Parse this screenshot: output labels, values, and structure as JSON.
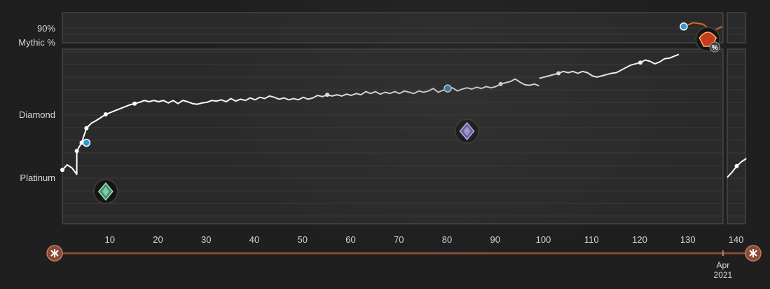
{
  "chart_data": {
    "type": "line",
    "title": "",
    "xlabel": "",
    "ylabel": "",
    "x_ticks": [
      10,
      20,
      30,
      40,
      50,
      60,
      70,
      80,
      90,
      100,
      110,
      120,
      130,
      140
    ],
    "xlim": [
      0,
      142
    ],
    "rank_labels": [
      "Platinum",
      "Diamond",
      "Mythic %"
    ],
    "mythic_tick_label": "90%",
    "date_marker": {
      "x": 137,
      "label_line1": "Apr",
      "label_line2": "2021"
    },
    "series": [
      {
        "y_scale": "rank",
        "segments": [
          [
            [
              0,
              4.12
            ],
            [
              1,
              4.2
            ],
            [
              2,
              4.15
            ],
            [
              3,
              4.05
            ],
            [
              3,
              4.42
            ],
            [
              4,
              4.55
            ],
            [
              5,
              4.78
            ],
            [
              6,
              4.86
            ],
            [
              7,
              4.9
            ],
            [
              8,
              4.95
            ],
            [
              9,
              5.0
            ],
            [
              10,
              5.03
            ],
            [
              11,
              5.06
            ],
            [
              12,
              5.09
            ],
            [
              13,
              5.12
            ],
            [
              14,
              5.15
            ],
            [
              15,
              5.17
            ],
            [
              16,
              5.19
            ],
            [
              17,
              5.22
            ],
            [
              18,
              5.2
            ],
            [
              19,
              5.22
            ],
            [
              20,
              5.2
            ],
            [
              21,
              5.22
            ],
            [
              22,
              5.18
            ],
            [
              23,
              5.22
            ],
            [
              24,
              5.17
            ],
            [
              25,
              5.22
            ],
            [
              26,
              5.2
            ],
            [
              27,
              5.17
            ],
            [
              28,
              5.16
            ],
            [
              29,
              5.18
            ],
            [
              30,
              5.19
            ],
            [
              31,
              5.22
            ],
            [
              32,
              5.21
            ],
            [
              33,
              5.23
            ],
            [
              34,
              5.2
            ],
            [
              35,
              5.25
            ],
            [
              36,
              5.21
            ],
            [
              37,
              5.24
            ],
            [
              38,
              5.22
            ],
            [
              39,
              5.26
            ],
            [
              40,
              5.23
            ],
            [
              41,
              5.27
            ],
            [
              42,
              5.25
            ],
            [
              43,
              5.29
            ],
            [
              44,
              5.27
            ],
            [
              45,
              5.24
            ],
            [
              46,
              5.26
            ],
            [
              47,
              5.23
            ],
            [
              48,
              5.25
            ],
            [
              49,
              5.23
            ],
            [
              50,
              5.27
            ],
            [
              51,
              5.24
            ],
            [
              52,
              5.26
            ],
            [
              53,
              5.3
            ],
            [
              54,
              5.28
            ],
            [
              55,
              5.31
            ],
            [
              56,
              5.29
            ],
            [
              57,
              5.31
            ],
            [
              58,
              5.29
            ],
            [
              59,
              5.32
            ],
            [
              60,
              5.3
            ],
            [
              61,
              5.33
            ],
            [
              62,
              5.31
            ],
            [
              63,
              5.36
            ],
            [
              64,
              5.33
            ],
            [
              65,
              5.36
            ],
            [
              66,
              5.32
            ],
            [
              67,
              5.35
            ],
            [
              68,
              5.33
            ],
            [
              69,
              5.36
            ],
            [
              70,
              5.33
            ],
            [
              71,
              5.37
            ],
            [
              72,
              5.35
            ],
            [
              73,
              5.33
            ],
            [
              74,
              5.37
            ],
            [
              75,
              5.35
            ],
            [
              76,
              5.37
            ],
            [
              77,
              5.41
            ],
            [
              78,
              5.35
            ],
            [
              79,
              5.38
            ],
            [
              80,
              5.41
            ],
            [
              81,
              5.42
            ],
            [
              82,
              5.37
            ],
            [
              83,
              5.4
            ],
            [
              84,
              5.42
            ],
            [
              85,
              5.4
            ],
            [
              86,
              5.43
            ],
            [
              87,
              5.41
            ],
            [
              88,
              5.44
            ],
            [
              89,
              5.42
            ],
            [
              90,
              5.44
            ],
            [
              91,
              5.48
            ],
            [
              92,
              5.5
            ],
            [
              93,
              5.52
            ],
            [
              94,
              5.56
            ],
            [
              95,
              5.51
            ],
            [
              96,
              5.47
            ],
            [
              97,
              5.46
            ],
            [
              98,
              5.48
            ],
            [
              99,
              5.45
            ]
          ],
          [
            [
              99,
              5.57
            ],
            [
              100,
              5.59
            ],
            [
              101,
              5.61
            ],
            [
              102,
              5.63
            ],
            [
              103,
              5.65
            ],
            [
              104,
              5.68
            ],
            [
              105,
              5.66
            ],
            [
              106,
              5.68
            ],
            [
              107,
              5.65
            ],
            [
              108,
              5.68
            ],
            [
              109,
              5.66
            ],
            [
              110,
              5.61
            ],
            [
              111,
              5.59
            ],
            [
              112,
              5.61
            ],
            [
              113,
              5.63
            ],
            [
              114,
              5.65
            ],
            [
              115,
              5.66
            ],
            [
              116,
              5.7
            ],
            [
              117,
              5.74
            ],
            [
              118,
              5.78
            ],
            [
              119,
              5.8
            ],
            [
              120,
              5.82
            ],
            [
              121,
              5.86
            ],
            [
              122,
              5.84
            ],
            [
              123,
              5.8
            ],
            [
              124,
              5.83
            ],
            [
              125,
              5.88
            ],
            [
              126,
              5.89
            ],
            [
              127,
              5.92
            ],
            [
              128,
              5.95
            ]
          ],
          [
            [
              138,
              4.0
            ],
            [
              139,
              4.08
            ],
            [
              140,
              4.18
            ],
            [
              141,
              4.25
            ],
            [
              142,
              4.3
            ]
          ]
        ],
        "markers": [
          [
            0,
            4.12
          ],
          [
            3,
            4.42
          ],
          [
            4,
            4.55
          ],
          [
            5,
            4.78
          ],
          [
            9,
            5.0
          ],
          [
            15,
            5.17
          ],
          [
            55,
            5.31
          ],
          [
            80,
            5.41
          ],
          [
            91,
            5.48
          ],
          [
            103,
            5.65
          ],
          [
            120,
            5.82
          ],
          [
            140,
            4.18
          ]
        ],
        "rank_up_points": [
          [
            5,
            4.55
          ],
          [
            80,
            5.41
          ]
        ]
      },
      {
        "y_scale": "mythic_percent",
        "segments": [
          [
            [
              129,
              92
            ],
            [
              131,
              97
            ],
            [
              133,
              95
            ],
            [
              135,
              86
            ],
            [
              137,
              92
            ]
          ]
        ],
        "markers": [],
        "rank_up_points": [
          [
            129,
            92
          ]
        ]
      }
    ],
    "badges": [
      {
        "icon": "platinum-rank-icon",
        "x": 9
      },
      {
        "icon": "diamond-rank-icon",
        "x": 84
      },
      {
        "icon": "mythic-rank-icon",
        "x": 134
      }
    ],
    "colors": {
      "line": "#ffffff",
      "mythic_line": "#d9661f",
      "rank_up_marker": "#2a9ad1",
      "timeline": "#8a4a35",
      "plot_bg": "#2a2a2a",
      "frame": "#555555",
      "grid": "#3a3a3a"
    }
  },
  "timeline": {
    "left_icon": "timeline-start-icon",
    "right_icon": "timeline-end-icon"
  }
}
